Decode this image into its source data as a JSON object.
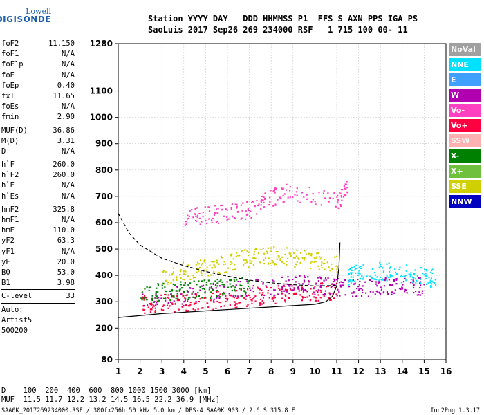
{
  "logo": {
    "line1": "Lowell",
    "line2": "DIGISONDE"
  },
  "header": {
    "line1": "Station YYYY DAY   DDD HHMMSS P1  FFS S AXN PPS IGA PS",
    "line2": "SaoLuis 2017 Sep26 269 234000 RSF   1 715 100 00- 11"
  },
  "params_group1": [
    {
      "key": "foF2",
      "value": "11.150"
    },
    {
      "key": "foF1",
      "value": "N/A"
    },
    {
      "key": "foF1p",
      "value": "N/A"
    },
    {
      "key": "foE",
      "value": "N/A"
    },
    {
      "key": "foEp",
      "value": "0.40"
    },
    {
      "key": "fxI",
      "value": "11.65"
    },
    {
      "key": "foEs",
      "value": "N/A"
    },
    {
      "key": "fmin",
      "value": "2.90"
    }
  ],
  "params_group2": [
    {
      "key": "MUF(D)",
      "value": "36.86"
    },
    {
      "key": "M(D)",
      "value": "3.31"
    },
    {
      "key": "D",
      "value": "N/A"
    }
  ],
  "params_group3": [
    {
      "key": "h`F",
      "value": "260.0"
    },
    {
      "key": "h`F2",
      "value": "260.0"
    },
    {
      "key": "h`E",
      "value": "N/A"
    },
    {
      "key": "h`Es",
      "value": "N/A"
    }
  ],
  "params_group4": [
    {
      "key": "hmF2",
      "value": "325.8"
    },
    {
      "key": "hmF1",
      "value": "N/A"
    },
    {
      "key": "hmE",
      "value": "110.0"
    },
    {
      "key": "yF2",
      "value": "63.3"
    },
    {
      "key": "yF1",
      "value": "N/A"
    },
    {
      "key": "yE",
      "value": "20.0"
    },
    {
      "key": "B0",
      "value": "53.0"
    },
    {
      "key": "B1",
      "value": "3.98"
    }
  ],
  "clevel": {
    "key": "C-level",
    "value": "33"
  },
  "autoscaling": {
    "line1": "Auto:",
    "line2": "Artist5",
    "line3": "500200"
  },
  "legend": [
    {
      "label": "NoVal",
      "color": "#a0a0a0"
    },
    {
      "label": "NNE",
      "color": "#00e0ff"
    },
    {
      "label": "E",
      "color": "#40a0ff"
    },
    {
      "label": "W",
      "color": "#b000b0"
    },
    {
      "label": "Vo-",
      "color": "#ff40c0"
    },
    {
      "label": "Vo+",
      "color": "#ff0040"
    },
    {
      "label": "SSW",
      "color": "#ffb0b0"
    },
    {
      "label": "X-",
      "color": "#008000"
    },
    {
      "label": "X+",
      "color": "#70c040"
    },
    {
      "label": "SSE",
      "color": "#d0d000"
    },
    {
      "label": "NNW",
      "color": "#0000c0"
    }
  ],
  "footer": {
    "d_line": "D    100  200  400  600  800 1000 1500 3000 [km]",
    "muf_line": "MUF  11.5 11.7 12.2 13.2 14.5 16.5 22.2 36.9 [MHz]"
  },
  "bottom": {
    "left": "SAA0K_2017269234000.RSF / 300fx256h 50 kHz 5.0 km / DPS-4 SAA0K 903 / 2.6 S 315.8 E",
    "right": "Ion2Png 1.3.17"
  },
  "chart_data": {
    "type": "scatter",
    "title": "",
    "xlabel": "",
    "ylabel": "",
    "xlim": [
      1,
      16
    ],
    "ylim": [
      80,
      1280
    ],
    "x_ticks": [
      "1",
      "2",
      "3",
      "4",
      "5",
      "6",
      "7",
      "8",
      "9",
      "10",
      "11",
      "12",
      "13",
      "14",
      "15",
      "16"
    ],
    "y_ticks": [
      {
        "v": 80,
        "label": "80"
      },
      {
        "v": 200,
        "label": "200"
      },
      {
        "v": 300,
        "label": "300"
      },
      {
        "v": 400,
        "label": "400"
      },
      {
        "v": 500,
        "label": "500"
      },
      {
        "v": 600,
        "label": "600"
      },
      {
        "v": 700,
        "label": "700"
      },
      {
        "v": 800,
        "label": "800"
      },
      {
        "v": 900,
        "label": "900"
      },
      {
        "v": 1000,
        "label": "1000"
      },
      {
        "v": 1100,
        "label": "1100"
      },
      {
        "v": 1280,
        "label": "1280"
      }
    ],
    "grid": true,
    "series": [
      {
        "color": "#000000",
        "style": "solid",
        "points": [
          [
            1,
            240
          ],
          [
            3,
            255
          ],
          [
            5,
            265
          ],
          [
            7,
            275
          ],
          [
            9,
            285
          ],
          [
            10,
            290
          ],
          [
            10.5,
            300
          ],
          [
            10.8,
            320
          ],
          [
            11,
            360
          ],
          [
            11.1,
            430
          ],
          [
            11.15,
            525
          ]
        ]
      },
      {
        "color": "#000000",
        "style": "dashed",
        "points": [
          [
            1,
            635
          ],
          [
            1.5,
            560
          ],
          [
            2,
            515
          ],
          [
            3,
            465
          ],
          [
            4,
            437
          ],
          [
            5,
            415
          ],
          [
            6,
            397
          ],
          [
            7,
            382
          ],
          [
            8,
            372
          ],
          [
            9,
            365
          ],
          [
            10,
            360
          ],
          [
            11,
            362
          ]
        ]
      },
      {
        "color": "#ff0040",
        "style": "echo",
        "points": [
          [
            2,
            290
          ],
          [
            3,
            295
          ],
          [
            4,
            300
          ],
          [
            5,
            305
          ],
          [
            6,
            310
          ],
          [
            7,
            320
          ],
          [
            8,
            330
          ],
          [
            9,
            335
          ],
          [
            10,
            340
          ],
          [
            11,
            345
          ]
        ]
      },
      {
        "color": "#b000b0",
        "style": "echo",
        "points": [
          [
            2,
            310
          ],
          [
            4,
            330
          ],
          [
            6,
            345
          ],
          [
            8,
            360
          ],
          [
            9,
            370
          ],
          [
            10,
            365
          ],
          [
            11,
            360
          ],
          [
            12,
            355
          ],
          [
            13,
            360
          ],
          [
            14,
            370
          ],
          [
            15,
            360
          ]
        ]
      },
      {
        "color": "#00e0ff",
        "style": "echo",
        "points": [
          [
            11.5,
            400
          ],
          [
            12,
            410
          ],
          [
            13,
            420
          ],
          [
            14,
            410
          ],
          [
            15,
            395
          ],
          [
            15.5,
            390
          ]
        ]
      },
      {
        "color": "#d0d000",
        "style": "echo",
        "points": [
          [
            3,
            400
          ],
          [
            4,
            420
          ],
          [
            5,
            430
          ],
          [
            6,
            450
          ],
          [
            7,
            470
          ],
          [
            8,
            480
          ],
          [
            9,
            470
          ],
          [
            10,
            460
          ],
          [
            11,
            450
          ]
        ]
      },
      {
        "color": "#008000",
        "style": "echo",
        "points": [
          [
            2,
            330
          ],
          [
            3,
            340
          ],
          [
            4,
            345
          ],
          [
            5,
            350
          ],
          [
            6,
            355
          ],
          [
            7,
            360
          ]
        ]
      },
      {
        "color": "#ff40c0",
        "style": "echo",
        "points": [
          [
            4,
            620
          ],
          [
            5,
            630
          ],
          [
            6,
            640
          ],
          [
            7,
            650
          ],
          [
            8,
            700
          ],
          [
            9,
            720
          ],
          [
            11,
            680
          ],
          [
            11.5,
            740
          ]
        ]
      }
    ]
  }
}
